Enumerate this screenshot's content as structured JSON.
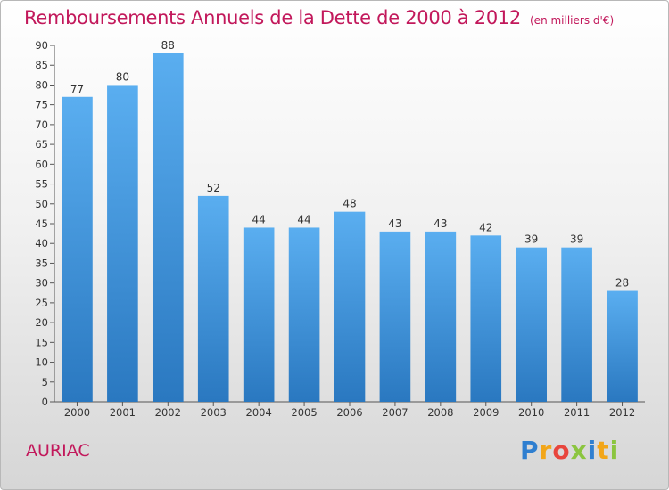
{
  "title": "Remboursements Annuels de la Dette de 2000 à 2012",
  "subtitle": "(en milliers d'€)",
  "commune": "AURIAC",
  "logo": "Proxiti",
  "colors": {
    "title": "#c2185b",
    "bar_top": "#5aaef0",
    "bar_bottom": "#2a78c0"
  },
  "chart_data": {
    "type": "bar",
    "categories": [
      "2000",
      "2001",
      "2002",
      "2003",
      "2004",
      "2005",
      "2006",
      "2007",
      "2008",
      "2009",
      "2010",
      "2011",
      "2012"
    ],
    "values": [
      77,
      80,
      88,
      52,
      44,
      44,
      48,
      43,
      43,
      42,
      39,
      39,
      28
    ],
    "ylim": [
      0,
      90
    ],
    "yticks": [
      0,
      5,
      10,
      15,
      20,
      25,
      30,
      35,
      40,
      45,
      50,
      55,
      60,
      65,
      70,
      75,
      80,
      85,
      90
    ],
    "grid": false,
    "legend": "none"
  }
}
